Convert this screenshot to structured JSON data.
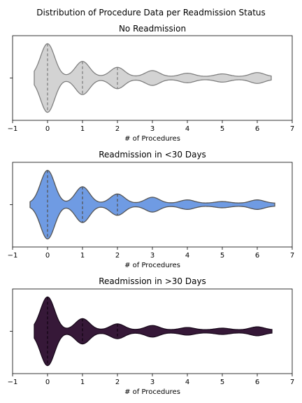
{
  "figure": {
    "title": "Distribution of Procedure Data per Readmission Status"
  },
  "chart_data": [
    {
      "type": "violin",
      "title": "No Readmission",
      "xlabel": "# of Procedures",
      "ylabel": "",
      "xlim": [
        -1,
        7
      ],
      "xticks": [
        -1,
        0,
        1,
        2,
        3,
        4,
        5,
        6,
        7
      ],
      "fill_color": "#d3d3d3",
      "edge_color": "#808080",
      "quartile_color": "#808080",
      "grid": false,
      "range": [
        -0.38,
        6.4
      ],
      "quartiles": [
        0,
        1,
        2
      ],
      "density_peaks": [
        {
          "x": 0,
          "height": 1.0
        },
        {
          "x": 1,
          "height": 0.46
        },
        {
          "x": 2,
          "height": 0.28
        },
        {
          "x": 3,
          "height": 0.18
        },
        {
          "x": 4,
          "height": 0.1
        },
        {
          "x": 5,
          "height": 0.08
        },
        {
          "x": 6,
          "height": 0.12
        }
      ]
    },
    {
      "type": "violin",
      "title": "Readmission in <30 Days",
      "xlabel": "# of Procedures",
      "ylabel": "",
      "xlim": [
        -1,
        7
      ],
      "xticks": [
        -1,
        0,
        1,
        2,
        3,
        4,
        5,
        6,
        7
      ],
      "fill_color": "#6f9be3",
      "edge_color": "#555555",
      "quartile_color": "#555555",
      "grid": false,
      "range": [
        -0.5,
        6.5
      ],
      "quartiles": [
        0,
        1,
        2
      ],
      "density_peaks": [
        {
          "x": 0,
          "height": 1.0
        },
        {
          "x": 1,
          "height": 0.5
        },
        {
          "x": 2,
          "height": 0.28
        },
        {
          "x": 3,
          "height": 0.18
        },
        {
          "x": 4,
          "height": 0.1
        },
        {
          "x": 5,
          "height": 0.05
        },
        {
          "x": 6,
          "height": 0.1
        }
      ]
    },
    {
      "type": "violin",
      "title": "Readmission in >30 Days",
      "xlabel": "# of Procedures",
      "ylabel": "",
      "xlim": [
        -1,
        7
      ],
      "xticks": [
        -1,
        0,
        1,
        2,
        3,
        4,
        5,
        6,
        7
      ],
      "fill_color": "#361838",
      "edge_color": "#1a0a1c",
      "quartile_color": "#120512",
      "grid": false,
      "range": [
        -0.38,
        6.42
      ],
      "quartiles": [
        0,
        1,
        2
      ],
      "density_peaks": [
        {
          "x": 0,
          "height": 1.0
        },
        {
          "x": 1,
          "height": 0.34
        },
        {
          "x": 2,
          "height": 0.18
        },
        {
          "x": 3,
          "height": 0.13
        },
        {
          "x": 4,
          "height": 0.07
        },
        {
          "x": 5,
          "height": 0.05
        },
        {
          "x": 6,
          "height": 0.09
        }
      ]
    }
  ]
}
